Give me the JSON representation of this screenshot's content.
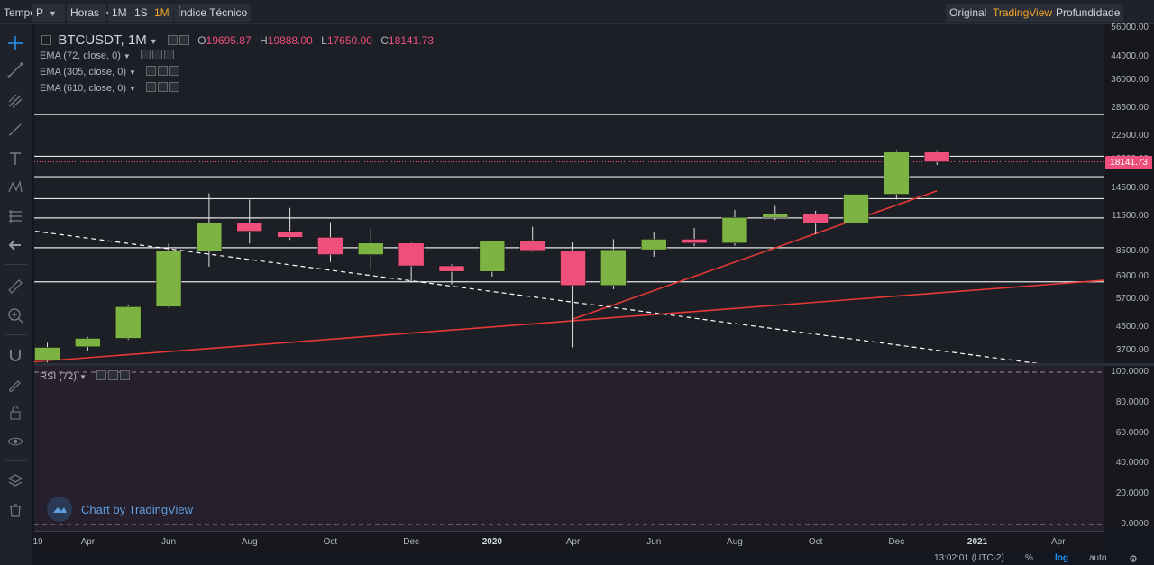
{
  "toolbar": {
    "interval_label": "Tempo",
    "chart_style": "P",
    "hours": "Horas",
    "res_1m": "1M",
    "res_1s": "1S",
    "res_1M": "1M",
    "indicators": "Índice Técnico",
    "view_original": "Original",
    "view_tradingview": "TradingView",
    "view_depth": "Profundidade"
  },
  "legend": {
    "symbol": "BTCUSDT, 1M",
    "o_key": "O",
    "o_val": "19695.87",
    "h_key": "H",
    "h_val": "19888.00",
    "l_key": "L",
    "l_val": "17650.00",
    "c_key": "C",
    "c_val": "18141.73",
    "ema1": "EMA (72, close, 0)",
    "ema2": "EMA (305, close, 0)",
    "ema3": "EMA (610, close, 0)",
    "rsi": "RSI (72)"
  },
  "last_price_tag": "18141.73",
  "watermark": "Chart by TradingView",
  "bottom_bar": {
    "time": "13:02:01 (UTC-2)",
    "percent": "%",
    "log": "log",
    "auto": "auto"
  },
  "colors": {
    "up": "#7cb342",
    "down": "#ef4f7b",
    "trend": "#e53935",
    "background": "#1c1f26",
    "rsi_background": "#261f2d"
  },
  "chart_data": {
    "type": "candlestick",
    "symbol": "BTCUSDT",
    "interval": "1M",
    "price_scale": "log",
    "ylim": [
      3000,
      60000
    ],
    "price_ticks": [
      {
        "label": "56000.00",
        "v": 56000
      },
      {
        "label": "44000.00",
        "v": 44000
      },
      {
        "label": "36000.00",
        "v": 36000
      },
      {
        "label": "28500.00",
        "v": 28500
      },
      {
        "label": "22500.00",
        "v": 22500
      },
      {
        "label": "18500.00",
        "v": 18500
      },
      {
        "label": "14500.00",
        "v": 14500
      },
      {
        "label": "11500.00",
        "v": 11500
      },
      {
        "label": "8500.00",
        "v": 8500
      },
      {
        "label": "6900.00",
        "v": 6900
      },
      {
        "label": "5700.00",
        "v": 5700
      },
      {
        "label": "4500.00",
        "v": 4500
      },
      {
        "label": "3700.00",
        "v": 3700
      }
    ],
    "time_ticks": [
      {
        "label": "19",
        "i": -0.5
      },
      {
        "label": "Apr",
        "i": 1
      },
      {
        "label": "Jun",
        "i": 3
      },
      {
        "label": "Aug",
        "i": 5
      },
      {
        "label": "Oct",
        "i": 7
      },
      {
        "label": "Dec",
        "i": 9
      },
      {
        "label": "2020",
        "i": 11,
        "bold": true
      },
      {
        "label": "Apr",
        "i": 13
      },
      {
        "label": "Jun",
        "i": 15
      },
      {
        "label": "Aug",
        "i": 17
      },
      {
        "label": "Oct",
        "i": 19
      },
      {
        "label": "Dec",
        "i": 21
      },
      {
        "label": "2021",
        "i": 23,
        "bold": true
      },
      {
        "label": "Apr",
        "i": 25
      }
    ],
    "candles": [
      {
        "t": "2019-02",
        "o": 3400,
        "h": 3950,
        "l": 3350,
        "c": 3800
      },
      {
        "t": "2019-03",
        "o": 3820,
        "h": 4150,
        "l": 3700,
        "c": 4100
      },
      {
        "t": "2019-04",
        "o": 4100,
        "h": 5450,
        "l": 4050,
        "c": 5350
      },
      {
        "t": "2019-05",
        "o": 5350,
        "h": 9100,
        "l": 5300,
        "c": 8550
      },
      {
        "t": "2019-06",
        "o": 8550,
        "h": 13900,
        "l": 7500,
        "c": 10850
      },
      {
        "t": "2019-07",
        "o": 10850,
        "h": 13200,
        "l": 9100,
        "c": 10100
      },
      {
        "t": "2019-08",
        "o": 10100,
        "h": 12300,
        "l": 9400,
        "c": 9600
      },
      {
        "t": "2019-09",
        "o": 9600,
        "h": 10900,
        "l": 7800,
        "c": 8300
      },
      {
        "t": "2019-10",
        "o": 8300,
        "h": 10400,
        "l": 7300,
        "c": 9150
      },
      {
        "t": "2019-11",
        "o": 9150,
        "h": 9200,
        "l": 6550,
        "c": 7550
      },
      {
        "t": "2019-12",
        "o": 7550,
        "h": 7650,
        "l": 6450,
        "c": 7200
      },
      {
        "t": "2020-01",
        "o": 7200,
        "h": 9200,
        "l": 6900,
        "c": 9350
      },
      {
        "t": "2020-02",
        "o": 9350,
        "h": 10500,
        "l": 8500,
        "c": 8600
      },
      {
        "t": "2020-03",
        "o": 8600,
        "h": 9200,
        "l": 3800,
        "c": 6400
      },
      {
        "t": "2020-04",
        "o": 6400,
        "h": 9450,
        "l": 6200,
        "c": 8650
      },
      {
        "t": "2020-05",
        "o": 8650,
        "h": 10050,
        "l": 8150,
        "c": 9450
      },
      {
        "t": "2020-06",
        "o": 9450,
        "h": 10400,
        "l": 8900,
        "c": 9150
      },
      {
        "t": "2020-07",
        "o": 9150,
        "h": 12100,
        "l": 8950,
        "c": 11350
      },
      {
        "t": "2020-08",
        "o": 11350,
        "h": 12500,
        "l": 11100,
        "c": 11700
      },
      {
        "t": "2020-09",
        "o": 11700,
        "h": 12000,
        "l": 9850,
        "c": 10800
      },
      {
        "t": "2020-10",
        "o": 10800,
        "h": 14000,
        "l": 10400,
        "c": 13800
      },
      {
        "t": "2020-11",
        "o": 13800,
        "h": 19900,
        "l": 13200,
        "c": 19700
      },
      {
        "t": "2020-12",
        "o": 19695.87,
        "h": 19888.0,
        "l": 17650.0,
        "c": 18141.73
      }
    ],
    "horizontal_levels": [
      27000,
      19000,
      16000,
      13300,
      11300,
      8800,
      6600
    ],
    "trend_lines": [
      {
        "style": "solid",
        "color": "#e53935",
        "from": {
          "i": -0.5,
          "v": 3350
        },
        "to": {
          "i": 26.5,
          "v": 6750
        }
      },
      {
        "style": "solid",
        "color": "#e53935",
        "from": {
          "i": 13,
          "v": 4820
        },
        "to": {
          "i": 22,
          "v": 14200
        }
      },
      {
        "style": "dashed",
        "color": "#ffffff",
        "from": {
          "i": -0.5,
          "v": 10200
        },
        "to": {
          "i": 26,
          "v": 3100
        }
      }
    ],
    "last_price": 18141.73,
    "rsi": {
      "period": 72,
      "ticks": [
        {
          "label": "100.0000",
          "v": 100
        },
        {
          "label": "80.0000",
          "v": 80
        },
        {
          "label": "60.0000",
          "v": 60
        },
        {
          "label": "40.0000",
          "v": 40
        },
        {
          "label": "20.0000",
          "v": 20
        },
        {
          "label": "0.0000",
          "v": 0
        }
      ],
      "bands": [
        100,
        0
      ]
    }
  }
}
